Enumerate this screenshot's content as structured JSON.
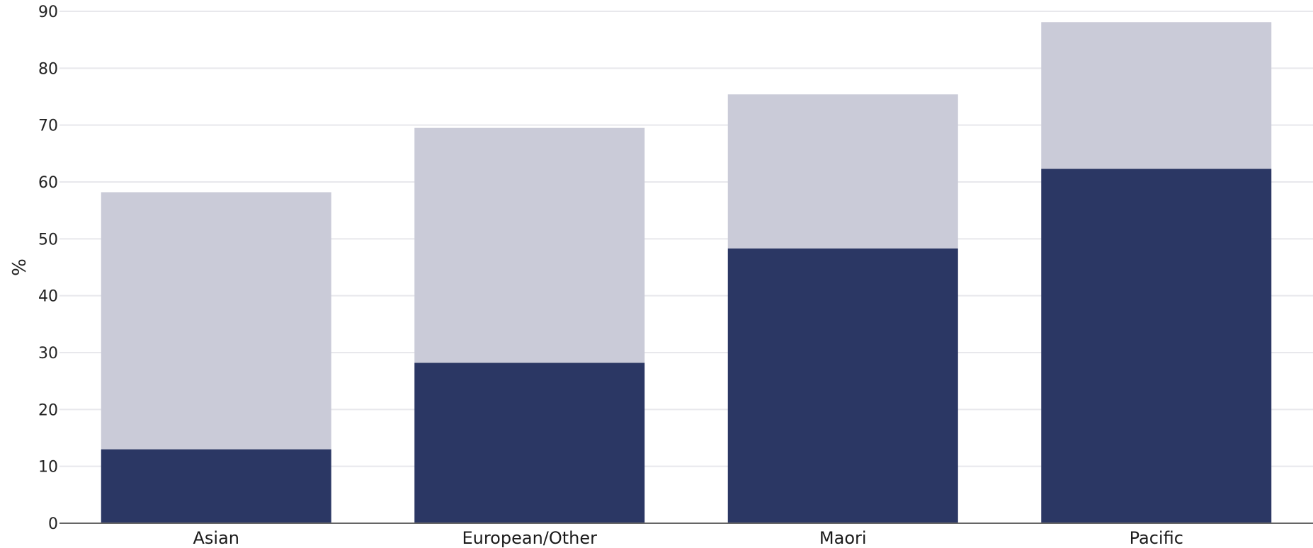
{
  "chart_data": {
    "type": "bar",
    "stacked": true,
    "categories": [
      "Asian",
      "European/Other",
      "Maori",
      "Pacific"
    ],
    "series": [
      {
        "values": [
          13,
          28.2,
          48.3,
          62.3
        ],
        "color": "#2b3764"
      },
      {
        "values": [
          45.2,
          41.3,
          27.1,
          25.8
        ],
        "color": "#cacbd8"
      }
    ],
    "ylabel": "%",
    "ylim": [
      0,
      90
    ],
    "yticks": [
      0,
      10,
      20,
      30,
      40,
      50,
      60,
      70,
      80,
      90
    ],
    "grid": true,
    "legend": "none"
  }
}
